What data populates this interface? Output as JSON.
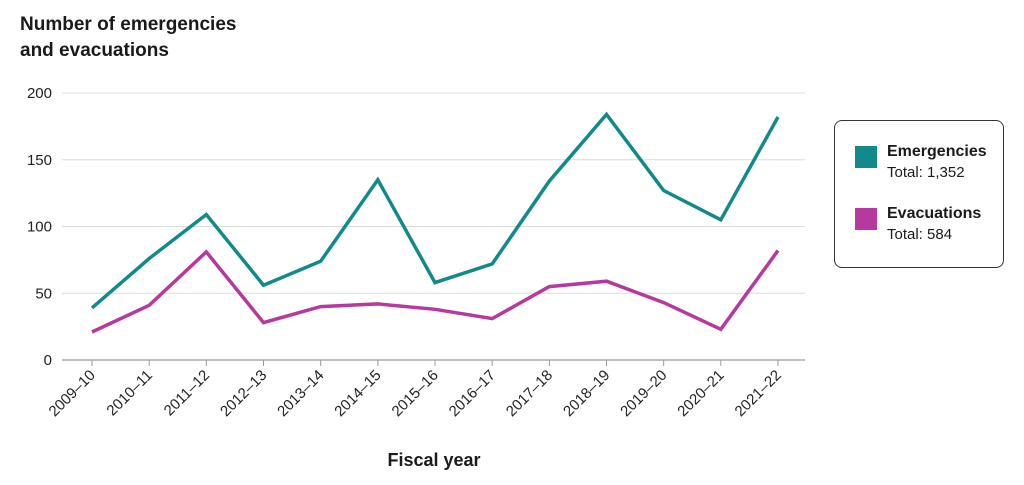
{
  "chart_data": {
    "type": "line",
    "title": "",
    "ylabel_lines": [
      "Number of emergencies",
      "and evacuations"
    ],
    "xlabel": "Fiscal year",
    "ylim": [
      0,
      200
    ],
    "yticks": [
      0,
      50,
      100,
      150,
      200
    ],
    "grid": true,
    "legend_position": "right",
    "categories": [
      "2009–10",
      "2010–11",
      "2011–12",
      "2012–13",
      "2013–14",
      "2014–15",
      "2015–16",
      "2016–17",
      "2017–18",
      "2018–19",
      "2019–20",
      "2020–21",
      "2021–22"
    ],
    "series": [
      {
        "name": "Emergencies",
        "total_label": "Total: 1,352",
        "color": "#138a8a",
        "values": [
          39,
          76,
          109,
          56,
          74,
          135,
          58,
          72,
          134,
          184,
          127,
          105,
          182
        ]
      },
      {
        "name": "Evacuations",
        "total_label": "Total: 584",
        "color": "#b5399e",
        "values": [
          21,
          41,
          81,
          28,
          40,
          42,
          38,
          31,
          55,
          59,
          43,
          23,
          82
        ]
      }
    ]
  }
}
